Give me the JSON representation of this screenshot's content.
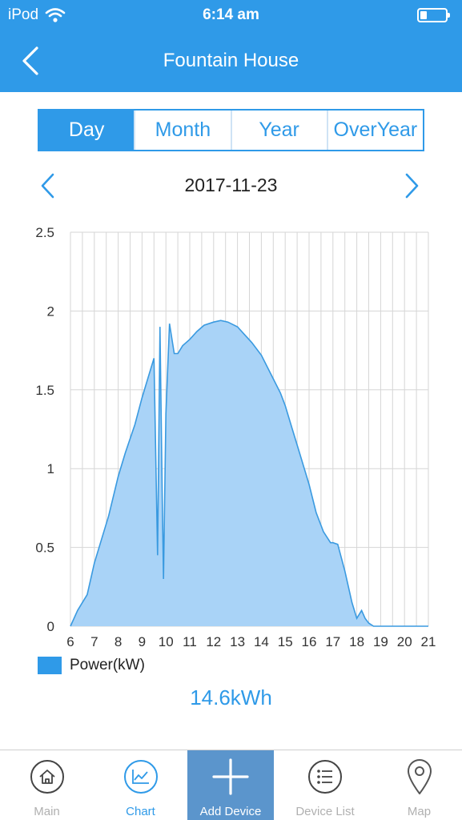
{
  "status_bar": {
    "carrier": "iPod",
    "time": "6:14 am",
    "battery_level": 0.25
  },
  "header": {
    "title": "Fountain House",
    "back_icon": "chevron-left-icon"
  },
  "period_tabs": [
    {
      "label": "Day",
      "active": true
    },
    {
      "label": "Month",
      "active": false
    },
    {
      "label": "Year",
      "active": false
    },
    {
      "label": "OverYear",
      "active": false
    }
  ],
  "date_nav": {
    "date": "2017-11-23",
    "prev_icon": "chevron-left-icon",
    "next_icon": "chevron-right-icon"
  },
  "chart_data": {
    "type": "area",
    "x_ticks": [
      "6",
      "7",
      "8",
      "9",
      "10",
      "11",
      "12",
      "13",
      "14",
      "15",
      "16",
      "17",
      "18",
      "19",
      "20",
      "21"
    ],
    "y_ticks": [
      "0",
      "0.5",
      "1",
      "1.5",
      "2",
      "2.5"
    ],
    "xlim": [
      6,
      21
    ],
    "ylim": [
      0,
      2.5
    ],
    "grid": true,
    "legend_position": "bottom-left",
    "fill_color": "#a9d3f7",
    "line_color": "#3a9ae0",
    "series": [
      {
        "name": "Power(kW)",
        "x": [
          6.0,
          6.3,
          6.7,
          7.0,
          7.3,
          7.6,
          8.0,
          8.3,
          8.7,
          9.0,
          9.3,
          9.5,
          9.65,
          9.75,
          9.85,
          9.9,
          10.0,
          10.15,
          10.35,
          10.5,
          10.7,
          11.0,
          11.3,
          11.6,
          12.0,
          12.3,
          12.6,
          13.0,
          13.3,
          13.6,
          14.0,
          14.4,
          14.8,
          15.0,
          15.3,
          15.6,
          16.0,
          16.3,
          16.6,
          16.9,
          17.0,
          17.2,
          17.5,
          17.8,
          18.0,
          18.2,
          18.35,
          18.5,
          18.7,
          18.9,
          19.0,
          20.0,
          21.0
        ],
        "y": [
          0.0,
          0.1,
          0.2,
          0.4,
          0.55,
          0.7,
          0.95,
          1.1,
          1.28,
          1.45,
          1.6,
          1.7,
          0.45,
          1.9,
          0.8,
          0.3,
          1.35,
          1.92,
          1.73,
          1.73,
          1.78,
          1.82,
          1.87,
          1.91,
          1.93,
          1.94,
          1.93,
          1.9,
          1.85,
          1.8,
          1.72,
          1.6,
          1.48,
          1.4,
          1.25,
          1.1,
          0.9,
          0.72,
          0.6,
          0.53,
          0.53,
          0.52,
          0.35,
          0.15,
          0.05,
          0.1,
          0.05,
          0.02,
          0.0,
          0.0,
          0.0,
          0.0,
          0.0
        ]
      }
    ]
  },
  "legend": {
    "label": "Power(kW)",
    "color": "#2f9ae8"
  },
  "total": {
    "text": "14.6kWh"
  },
  "tabbar": [
    {
      "label": "Main",
      "icon": "home-icon"
    },
    {
      "label": "Chart",
      "icon": "chart-icon",
      "active": true
    },
    {
      "label": "Add Device",
      "icon": "plus-icon"
    },
    {
      "label": "Device List",
      "icon": "list-icon"
    },
    {
      "label": "Map",
      "icon": "map-pin-icon"
    }
  ]
}
